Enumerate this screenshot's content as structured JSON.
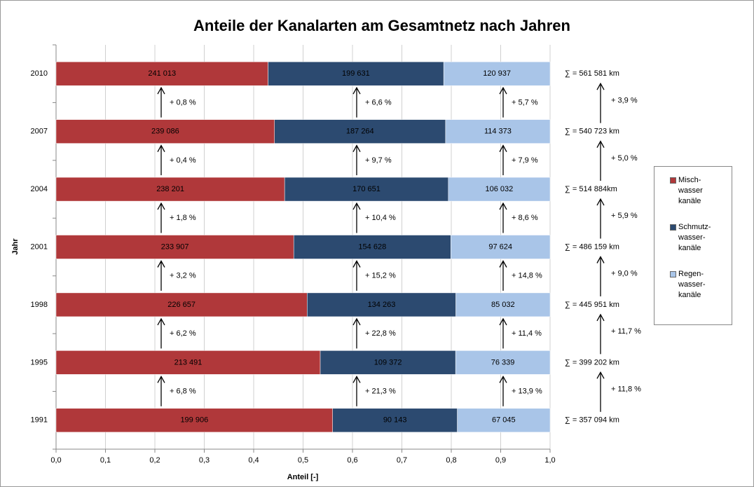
{
  "chart_data": {
    "type": "stacked_barh_percent",
    "title": "Anteile der Kanalarten am Gesamtnetz nach Jahren",
    "xlabel": "Anteil [-]",
    "ylabel": "Jahr",
    "categories": [
      "2010",
      "2007",
      "2004",
      "2001",
      "1998",
      "1995",
      "1991"
    ],
    "series": [
      {
        "name": "Misch- wasser kanäle",
        "color": "#b0383a",
        "values": [
          241013,
          239086,
          238201,
          233907,
          226657,
          213491,
          199906
        ],
        "value_labels": [
          "241 013",
          "239 086",
          "238 201",
          "233 907",
          "226 657",
          "213 491",
          "199 906"
        ],
        "changes": [
          "+ 0,8 %",
          "+ 0,4 %",
          "+ 1,8 %",
          "+ 3,2 %",
          "+ 6,2 %",
          "+ 6,8 %"
        ]
      },
      {
        "name": "Schmutz- wasser- kanäle",
        "color": "#2c4a70",
        "values": [
          199631,
          187264,
          170651,
          154628,
          134263,
          109372,
          90143
        ],
        "value_labels": [
          "199 631",
          "187 264",
          "170 651",
          "154 628",
          "134 263",
          "109 372",
          "90 143"
        ],
        "changes": [
          "+ 6,6 %",
          "+ 9,7 %",
          "+ 10,4 %",
          "+ 15,2 %",
          "+ 22,8 %",
          "+ 21,3 %"
        ]
      },
      {
        "name": "Regen- wasser- kanäle",
        "color": "#a9c5e8",
        "values": [
          120937,
          114373,
          106032,
          97624,
          85032,
          76339,
          67045
        ],
        "value_labels": [
          "120 937",
          "114 373",
          "106 032",
          "97 624",
          "85 032",
          "76 339",
          "67 045"
        ],
        "changes": [
          "+ 5,7 %",
          "+ 7,9 %",
          "+ 8,6 %",
          "+ 14,8 %",
          "+ 11,4 %",
          "+ 13,9 %"
        ]
      }
    ],
    "total_labels": [
      "∑ = 561 581 km",
      "∑ = 540 723 km",
      "∑ = 514 884km",
      "∑ = 486 159 km",
      "∑ = 445 951 km",
      "∑ = 399 202 km",
      "∑ = 357 094 km"
    ],
    "total_changes": [
      "+ 3,9 %",
      "+ 5,0 %",
      "+ 5,9 %",
      "+ 9,0 %",
      "+ 11,7 %",
      "+ 11,8 %"
    ],
    "xlim": [
      0,
      1
    ],
    "xticks": [
      {
        "value": 0,
        "label": "0,0"
      },
      {
        "value": 0.1,
        "label": "0,1"
      },
      {
        "value": 0.2,
        "label": "0,2"
      },
      {
        "value": 0.3,
        "label": "0,3"
      },
      {
        "value": 0.4,
        "label": "0,4"
      },
      {
        "value": 0.5,
        "label": "0,5"
      },
      {
        "value": 0.6,
        "label": "0,6"
      },
      {
        "value": 0.7,
        "label": "0,7"
      },
      {
        "value": 0.8,
        "label": "0,8"
      },
      {
        "value": 0.9,
        "label": "0,9"
      },
      {
        "value": 1,
        "label": "1,0"
      }
    ],
    "grid": true,
    "legend": "right"
  }
}
